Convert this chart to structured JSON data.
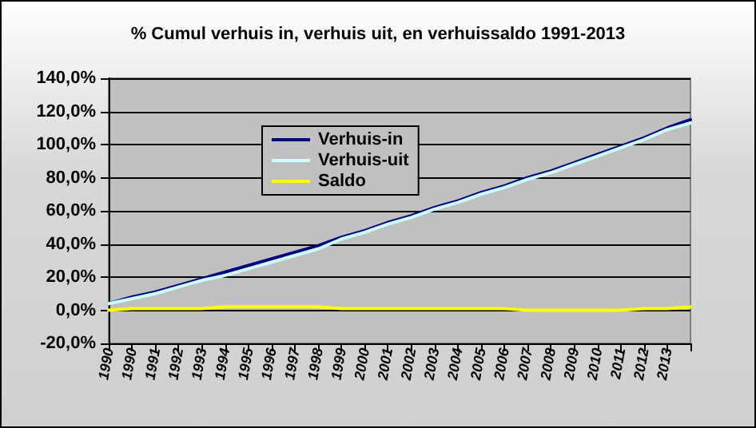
{
  "chart_data": {
    "type": "line",
    "title": "% Cumul verhuis in, verhuis uit, en verhuissaldo 1991-2013",
    "categories": [
      "1990",
      "1990",
      "1991",
      "1992",
      "1993",
      "1994",
      "1995",
      "1996",
      "1997",
      "1998",
      "1999",
      "2000",
      "2001",
      "2002",
      "2003",
      "2004",
      "2005",
      "2006",
      "2007",
      "2008",
      "2009",
      "2010",
      "2011",
      "2012",
      "2013",
      null
    ],
    "series": [
      {
        "name": "Verhuis-in",
        "color": "#000080",
        "values": [
          4,
          8,
          11,
          15,
          19,
          23,
          27,
          31,
          35,
          39,
          44,
          48,
          53,
          57,
          62,
          66,
          71,
          75,
          80,
          84,
          89,
          94,
          99,
          104,
          110,
          115
        ]
      },
      {
        "name": "Verhuis-uit",
        "color": "#ccffff",
        "values": [
          4,
          7,
          10,
          14,
          18,
          21,
          25,
          29,
          33,
          37,
          43,
          47,
          52,
          56,
          61,
          65,
          70,
          74,
          79,
          83,
          88,
          93,
          98,
          103,
          109,
          113
        ]
      },
      {
        "name": "Saldo",
        "color": "#ffff00",
        "values": [
          0,
          1,
          1,
          1,
          1,
          2,
          2,
          2,
          2,
          2,
          1,
          1,
          1,
          1,
          1,
          1,
          1,
          1,
          0,
          0,
          0,
          0,
          0,
          1,
          1,
          2
        ]
      }
    ],
    "ylim": [
      -20,
      140
    ],
    "yticks": [
      {
        "value": -20,
        "label": "-20,0%"
      },
      {
        "value": 0,
        "label": "0,0%"
      },
      {
        "value": 20,
        "label": "20,0%"
      },
      {
        "value": 40,
        "label": "40,0%"
      },
      {
        "value": 60,
        "label": "60,0%"
      },
      {
        "value": 80,
        "label": "80,0%"
      },
      {
        "value": 100,
        "label": "100,0%"
      },
      {
        "value": 120,
        "label": "120,0%"
      },
      {
        "value": 140,
        "label": "140,0%"
      }
    ],
    "grid": "y",
    "legend": "top",
    "marker": "none",
    "line_style": "solid"
  }
}
